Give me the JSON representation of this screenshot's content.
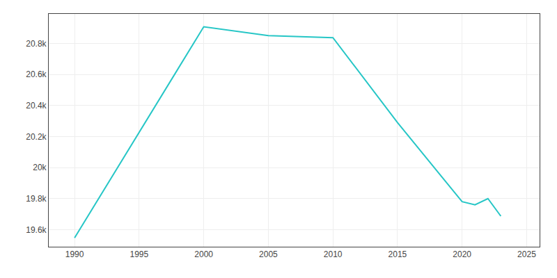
{
  "chart_data": {
    "type": "line",
    "x": [
      1990,
      2000,
      2005,
      2010,
      2015,
      2020,
      2021,
      2022,
      2023
    ],
    "values": [
      19547,
      20907,
      20850,
      20837,
      20290,
      19780,
      19760,
      19800,
      19687
    ],
    "color": "#26C6C6",
    "xlim": [
      1988,
      2026
    ],
    "xticks": [
      1990,
      1995,
      2000,
      2005,
      2010,
      2015,
      2020,
      2025
    ],
    "ylim": [
      19490,
      20990
    ],
    "yticks": [
      {
        "value": 19600,
        "label": "19.6k"
      },
      {
        "value": 19800,
        "label": "19.8k"
      },
      {
        "value": 20000,
        "label": "20k"
      },
      {
        "value": 20200,
        "label": "20.2k"
      },
      {
        "value": 20400,
        "label": "20.4k"
      },
      {
        "value": 20600,
        "label": "20.6k"
      },
      {
        "value": 20800,
        "label": "20.8k"
      }
    ],
    "grid": true
  }
}
